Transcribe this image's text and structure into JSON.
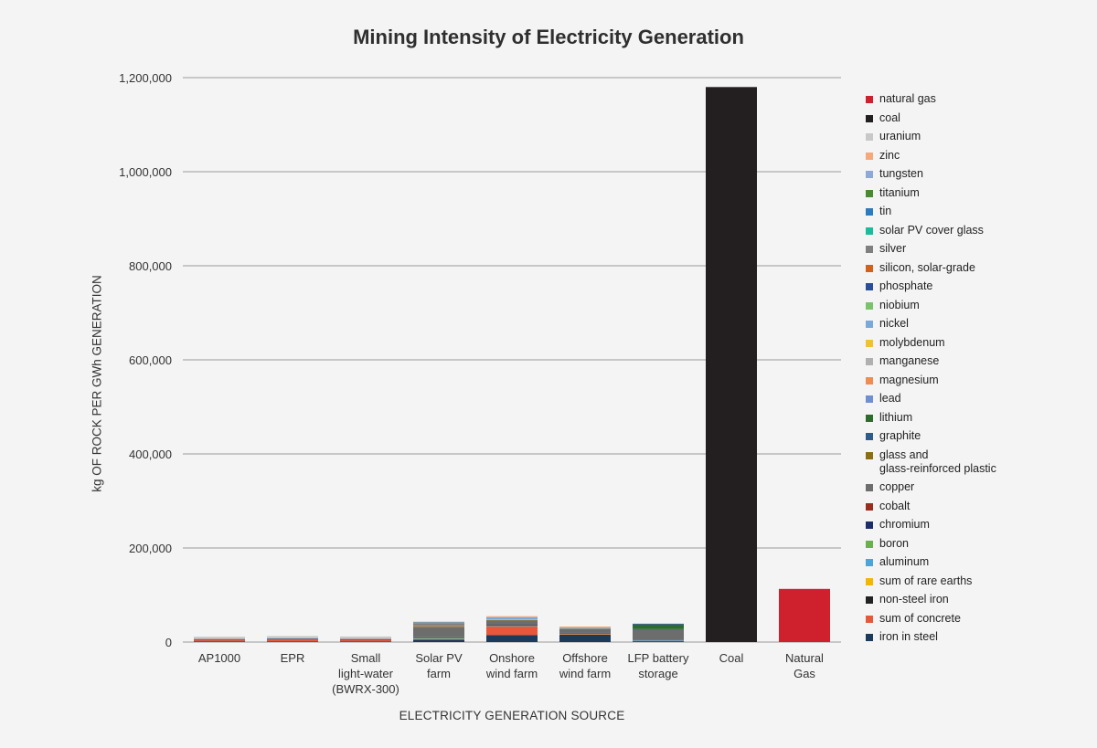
{
  "chart_data": {
    "type": "bar",
    "stacked": true,
    "title": "Mining Intensity of Electricity Generation",
    "xlabel": "ELECTRICITY GENERATION SOURCE",
    "ylabel": "kg OF ROCK PER GWh GENERATION",
    "ylim": [
      0,
      1200000
    ],
    "yticks": [
      "0",
      "200,000",
      "400,000",
      "600,000",
      "800,000",
      "1,000,000",
      "1,200,000"
    ],
    "ytick_values": [
      0,
      200000,
      400000,
      600000,
      800000,
      1000000,
      1200000
    ],
    "grid": true,
    "legend_position": "right",
    "categories": [
      "AP1000",
      "EPR",
      "Small\nlight-water\n(BWRX-300)",
      "Solar PV\nfarm",
      "Onshore\nwind farm",
      "Offshore\nwind farm",
      "LFP battery\nstorage",
      "Coal",
      "Natural\nGas"
    ],
    "series": [
      {
        "name": "iron in steel",
        "color": "#1c3a5a",
        "values": [
          1500,
          1500,
          1500,
          5000,
          15000,
          16000,
          2000,
          0,
          0
        ]
      },
      {
        "name": "sum of concrete",
        "color": "#e8573a",
        "values": [
          3500,
          5000,
          4000,
          1500,
          18000,
          1000,
          500,
          0,
          0
        ]
      },
      {
        "name": "non-steel iron",
        "color": "#222222",
        "values": [
          0,
          0,
          0,
          0,
          0,
          0,
          0,
          0,
          0
        ]
      },
      {
        "name": "sum of rare earths",
        "color": "#f2b705",
        "values": [
          0,
          0,
          0,
          500,
          1000,
          1000,
          0,
          0,
          0
        ]
      },
      {
        "name": "aluminum",
        "color": "#4ba6d8",
        "values": [
          300,
          300,
          300,
          2500,
          500,
          500,
          1500,
          0,
          0
        ]
      },
      {
        "name": "boron",
        "color": "#6ab04c",
        "values": [
          0,
          0,
          0,
          0,
          0,
          0,
          0,
          0,
          0
        ]
      },
      {
        "name": "chromium",
        "color": "#1b2e6a",
        "values": [
          500,
          500,
          500,
          500,
          1500,
          1500,
          0,
          0,
          0
        ]
      },
      {
        "name": "cobalt",
        "color": "#9b2d1f",
        "values": [
          0,
          0,
          0,
          0,
          0,
          0,
          0,
          0,
          0
        ]
      },
      {
        "name": "copper",
        "color": "#6d6d6d",
        "values": [
          500,
          500,
          500,
          21000,
          10000,
          8000,
          22000,
          0,
          0
        ]
      },
      {
        "name": "glass and\nglass-reinforced plastic",
        "color": "#8a6d14",
        "values": [
          0,
          0,
          0,
          2000,
          1000,
          1000,
          0,
          0,
          0
        ]
      },
      {
        "name": "graphite",
        "color": "#2e5c8a",
        "values": [
          0,
          0,
          0,
          0,
          0,
          0,
          1500,
          0,
          0
        ]
      },
      {
        "name": "lithium",
        "color": "#2f6b2f",
        "values": [
          0,
          0,
          0,
          0,
          0,
          0,
          10000,
          0,
          0
        ]
      },
      {
        "name": "lead",
        "color": "#6f8fd0",
        "values": [
          0,
          0,
          0,
          0,
          0,
          0,
          0,
          0,
          0
        ]
      },
      {
        "name": "magnesium",
        "color": "#ef8c50",
        "values": [
          0,
          0,
          0,
          0,
          0,
          0,
          0,
          0,
          0
        ]
      },
      {
        "name": "manganese",
        "color": "#b0b0b0",
        "values": [
          0,
          0,
          0,
          500,
          1000,
          500,
          0,
          0,
          0
        ]
      },
      {
        "name": "molybdenum",
        "color": "#f2c12e",
        "values": [
          0,
          0,
          0,
          0,
          0,
          0,
          0,
          0,
          0
        ]
      },
      {
        "name": "nickel",
        "color": "#7aa8d8",
        "values": [
          500,
          500,
          500,
          500,
          5000,
          1500,
          0,
          0,
          0
        ]
      },
      {
        "name": "niobium",
        "color": "#7ac36a",
        "values": [
          0,
          0,
          0,
          0,
          0,
          0,
          0,
          0,
          0
        ]
      },
      {
        "name": "phosphate",
        "color": "#2a4e9a",
        "values": [
          0,
          0,
          0,
          0,
          0,
          0,
          1500,
          0,
          0
        ]
      },
      {
        "name": "silicon, solar-grade",
        "color": "#d0621c",
        "values": [
          0,
          0,
          0,
          1500,
          0,
          0,
          0,
          0,
          0
        ]
      },
      {
        "name": "silver",
        "color": "#7f7f7f",
        "values": [
          0,
          0,
          0,
          4000,
          0,
          0,
          0,
          0,
          0
        ]
      },
      {
        "name": "solar PV cover glass",
        "color": "#1abc9c",
        "values": [
          0,
          0,
          0,
          2000,
          0,
          0,
          0,
          0,
          0
        ]
      },
      {
        "name": "tin",
        "color": "#2b7bc0",
        "values": [
          0,
          0,
          0,
          500,
          0,
          0,
          0,
          0,
          0
        ]
      },
      {
        "name": "titanium",
        "color": "#4a8a32",
        "values": [
          0,
          0,
          0,
          0,
          0,
          0,
          0,
          0,
          0
        ]
      },
      {
        "name": "tungsten",
        "color": "#8ea9d8",
        "values": [
          0,
          0,
          0,
          0,
          0,
          0,
          0,
          0,
          0
        ]
      },
      {
        "name": "zinc",
        "color": "#f5a97a",
        "values": [
          1000,
          1000,
          1000,
          1500,
          2000,
          2000,
          0,
          0,
          0
        ]
      },
      {
        "name": "uranium",
        "color": "#c8c8c8",
        "values": [
          3500,
          3500,
          3500,
          0,
          0,
          0,
          0,
          0,
          0
        ]
      },
      {
        "name": "coal",
        "color": "#231f20",
        "values": [
          0,
          0,
          0,
          0,
          0,
          0,
          0,
          1180000,
          0
        ]
      },
      {
        "name": "natural gas",
        "color": "#cf202e",
        "values": [
          0,
          0,
          0,
          0,
          0,
          0,
          0,
          0,
          113000
        ]
      }
    ]
  }
}
